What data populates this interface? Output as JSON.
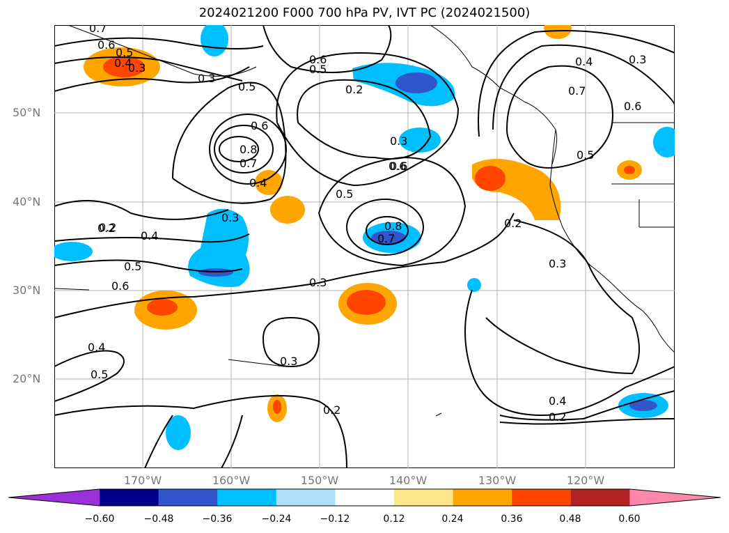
{
  "title": "2024021200 F000 700 hPa PV, IVT PC (2024021500)",
  "lat_labels": [
    "50°N",
    "40°N",
    "30°N",
    "20°N"
  ],
  "lon_labels": [
    "170°W",
    "160°W",
    "150°W",
    "140°W",
    "130°W",
    "120°W"
  ],
  "colorbar": {
    "colors": [
      "#9a30d8",
      "#00008b",
      "#3355cc",
      "#00bfff",
      "#ade0fa",
      "#ffffff",
      "#ffe68a",
      "#ffa500",
      "#ff4500",
      "#b22222",
      "#ff88aa"
    ],
    "ticks": [
      "−0.60",
      "−0.48",
      "−0.36",
      "−0.24",
      "−0.12",
      "0.12",
      "0.24",
      "0.36",
      "0.48",
      "0.60"
    ]
  },
  "contour_labels": [
    "0.7",
    "0.6",
    "0.5",
    "0.4",
    "0.3",
    "0.3",
    "0.5",
    "0.6",
    "0.6",
    "0.5",
    "0.2",
    "0.4",
    "0.3",
    "0.7",
    "0.6",
    "0.5",
    "0.6",
    "0.8",
    "0.7",
    "0.4",
    "0.3",
    "0.6",
    "0.5",
    "0.8",
    "0.7",
    "0.3",
    "0.2",
    "0.3",
    "0.2",
    "0.4",
    "0.5",
    "0.6",
    "0.3",
    "0.4",
    "0.5",
    "0.3",
    "0.2",
    "0.4",
    "0.2",
    "0.2"
  ]
}
